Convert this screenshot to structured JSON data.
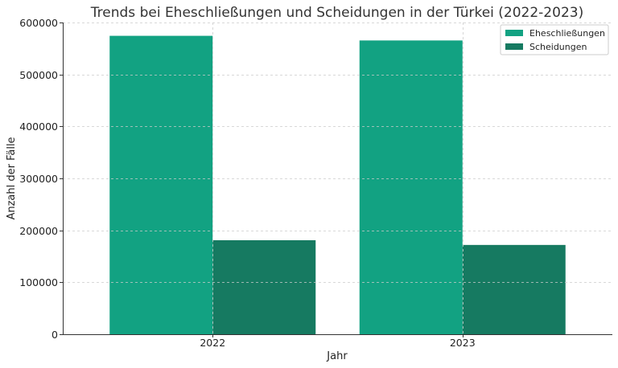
{
  "chart_data": {
    "type": "bar",
    "title": "Trends bei Eheschließungen und Scheidungen in der Türkei (2022-2023)",
    "xlabel": "Jahr",
    "ylabel": "Anzahl der Fälle",
    "categories": [
      "2022",
      "2023"
    ],
    "series": [
      {
        "name": "Eheschließungen",
        "color": "#12a282",
        "values": [
          574358,
          565435
        ]
      },
      {
        "name": "Scheidungen",
        "color": "#167a61",
        "values": [
          180954,
          171881
        ]
      }
    ],
    "ylim": [
      0,
      600000
    ],
    "yticks": [
      0,
      100000,
      200000,
      300000,
      400000,
      500000,
      600000
    ],
    "ytick_labels": [
      "0",
      "100000",
      "200000",
      "300000",
      "400000",
      "500000",
      "600000"
    ],
    "grid": true,
    "legend_position": "top-right"
  }
}
